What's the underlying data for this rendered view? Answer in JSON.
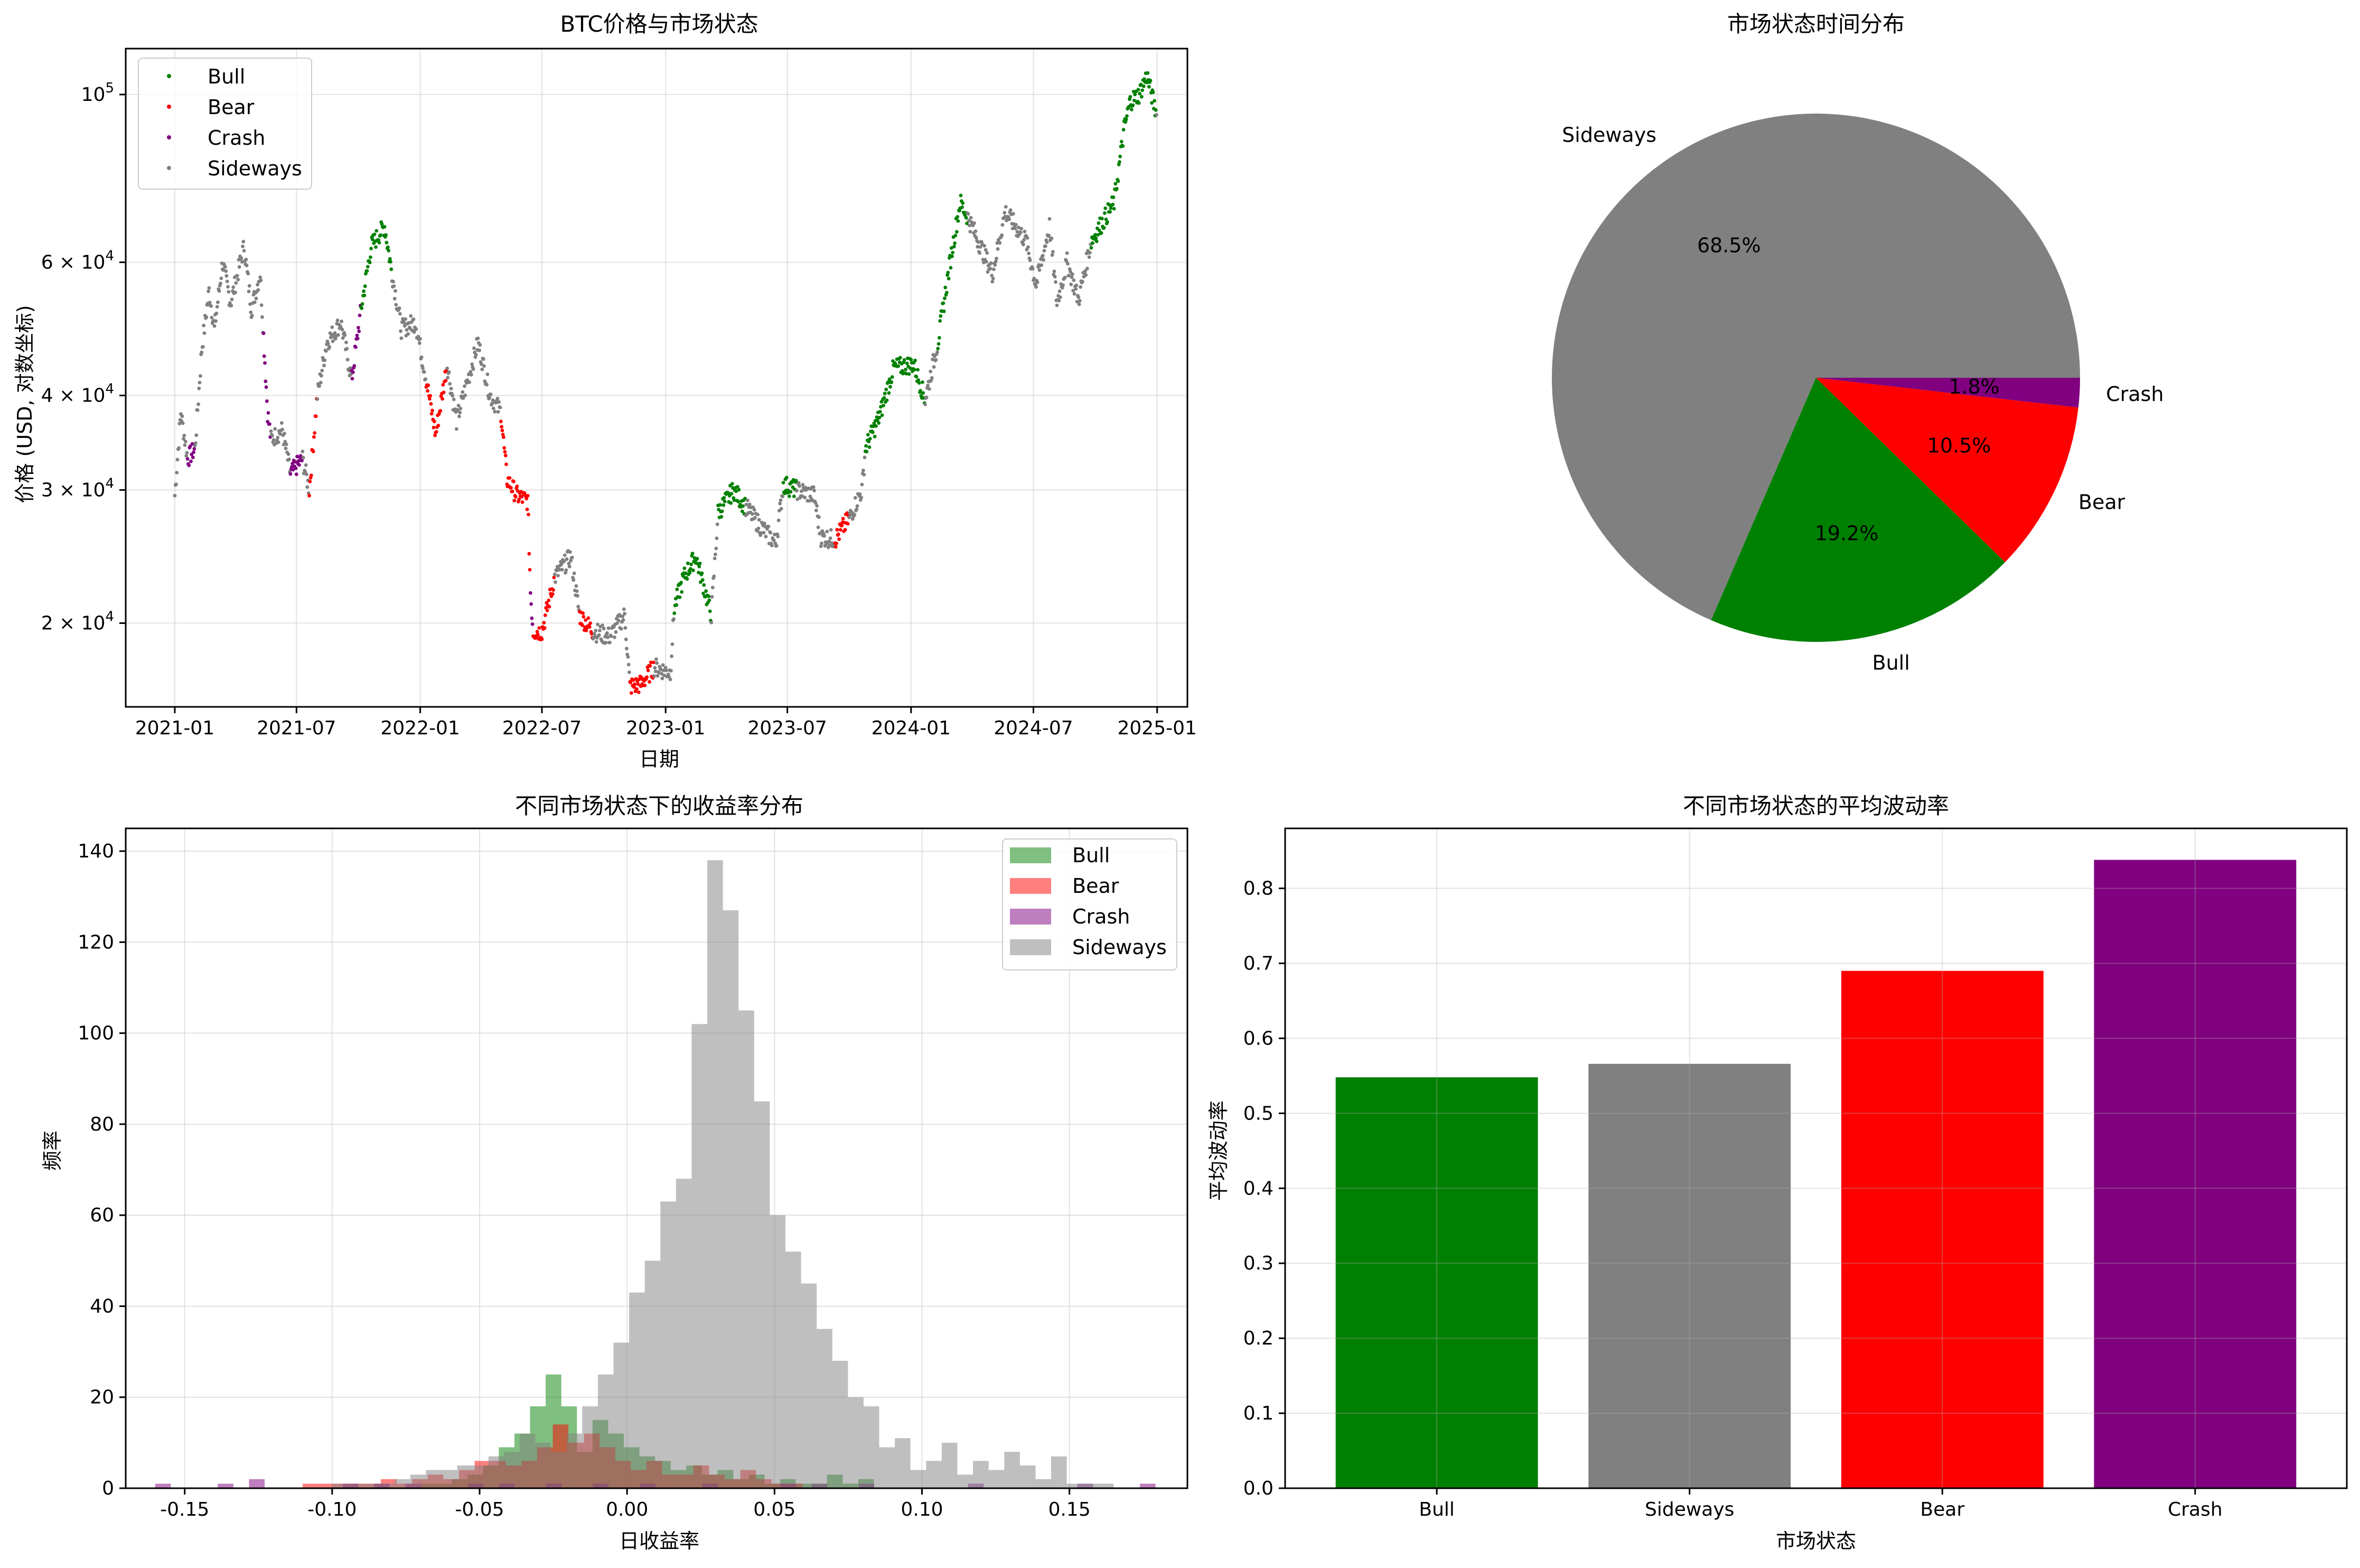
{
  "colors": {
    "Bull": "#008000",
    "Bear": "#ff0000",
    "Crash": "#800080",
    "Sideways": "#808080"
  },
  "chart_data": [
    {
      "type": "scatter",
      "title": "BTC价格与市场状态",
      "xlabel": "日期",
      "ylabel": "价格 (USD, 对数坐标)",
      "yscale": "log",
      "ylim": [
        15500,
        115000
      ],
      "xlim": [
        "2020-10-20",
        "2025-02-15"
      ],
      "x_ticks": [
        "2021-01",
        "2021-07",
        "2022-01",
        "2022-07",
        "2023-01",
        "2023-07",
        "2024-01",
        "2024-07",
        "2025-01"
      ],
      "x_tick_dates": [
        "2021-01-01",
        "2021-07-01",
        "2022-01-01",
        "2022-07-01",
        "2023-01-01",
        "2023-07-01",
        "2024-01-01",
        "2024-07-01",
        "2025-01-01"
      ],
      "y_ticks": [
        {
          "value": 20000,
          "mant": "2 × 10",
          "exp": "4"
        },
        {
          "value": 30000,
          "mant": "3 × 10",
          "exp": "4"
        },
        {
          "value": 40000,
          "mant": "4 × 10",
          "exp": "4"
        },
        {
          "value": 60000,
          "mant": "6 × 10",
          "exp": "4"
        },
        {
          "value": 100000,
          "mant": "10",
          "exp": "5"
        }
      ],
      "legend": {
        "position": "top-left",
        "entries": [
          "Bull",
          "Bear",
          "Crash",
          "Sideways"
        ]
      },
      "grid": true,
      "price_path": [
        [
          "2021-01-01",
          29500,
          "Sideways"
        ],
        [
          "2021-01-10",
          38000,
          "Sideways"
        ],
        [
          "2021-01-20",
          33000,
          "Crash"
        ],
        [
          "2021-01-31",
          34000,
          "Sideways"
        ],
        [
          "2021-02-10",
          46000,
          "Sideways"
        ],
        [
          "2021-02-21",
          55000,
          "Sideways"
        ],
        [
          "2021-03-01",
          49000,
          "Sideways"
        ],
        [
          "2021-03-13",
          60000,
          "Sideways"
        ],
        [
          "2021-03-25",
          53000,
          "Sideways"
        ],
        [
          "2021-04-14",
          63000,
          "Sideways"
        ],
        [
          "2021-04-25",
          52000,
          "Sideways"
        ],
        [
          "2021-05-08",
          58000,
          "Sideways"
        ],
        [
          "2021-05-13",
          48000,
          "Crash"
        ],
        [
          "2021-05-19",
          38000,
          "Crash"
        ],
        [
          "2021-05-24",
          35000,
          "Sideways"
        ],
        [
          "2021-06-10",
          36000,
          "Sideways"
        ],
        [
          "2021-06-22",
          31500,
          "Crash"
        ],
        [
          "2021-07-10",
          33000,
          "Sideways"
        ],
        [
          "2021-07-20",
          30000,
          "Bear"
        ],
        [
          "2021-08-01",
          40000,
          "Sideways"
        ],
        [
          "2021-08-15",
          47000,
          "Sideways"
        ],
        [
          "2021-09-05",
          50000,
          "Sideways"
        ],
        [
          "2021-09-21",
          42000,
          "Crash"
        ],
        [
          "2021-10-05",
          52000,
          "Bull"
        ],
        [
          "2021-10-20",
          63000,
          "Bull"
        ],
        [
          "2021-11-09",
          67000,
          "Bull"
        ],
        [
          "2021-11-20",
          58000,
          "Sideways"
        ],
        [
          "2021-12-04",
          49000,
          "Sideways"
        ],
        [
          "2021-12-25",
          50000,
          "Sideways"
        ],
        [
          "2022-01-10",
          42000,
          "Bear"
        ],
        [
          "2022-01-24",
          35500,
          "Bear"
        ],
        [
          "2022-02-10",
          44000,
          "Sideways"
        ],
        [
          "2022-02-24",
          37000,
          "Sideways"
        ],
        [
          "2022-03-28",
          47000,
          "Sideways"
        ],
        [
          "2022-04-15",
          40000,
          "Sideways"
        ],
        [
          "2022-05-01",
          38000,
          "Bear"
        ],
        [
          "2022-05-10",
          31000,
          "Bear"
        ],
        [
          "2022-05-25",
          29500,
          "Bear"
        ],
        [
          "2022-06-10",
          29000,
          "Bear"
        ],
        [
          "2022-06-14",
          22000,
          "Crash"
        ],
        [
          "2022-06-18",
          19500,
          "Bear"
        ],
        [
          "2022-07-01",
          19500,
          "Bear"
        ],
        [
          "2022-07-20",
          23000,
          "Sideways"
        ],
        [
          "2022-08-13",
          24500,
          "Sideways"
        ],
        [
          "2022-08-26",
          20500,
          "Bear"
        ],
        [
          "2022-09-15",
          19500,
          "Sideways"
        ],
        [
          "2022-10-10",
          19200,
          "Sideways"
        ],
        [
          "2022-11-01",
          20500,
          "Sideways"
        ],
        [
          "2022-11-09",
          16500,
          "Bear"
        ],
        [
          "2022-11-25",
          16600,
          "Bear"
        ],
        [
          "2022-12-15",
          17500,
          "Sideways"
        ],
        [
          "2023-01-08",
          17200,
          "Sideways"
        ],
        [
          "2023-01-14",
          21000,
          "Bull"
        ],
        [
          "2023-01-28",
          23000,
          "Bull"
        ],
        [
          "2023-02-15",
          24500,
          "Bull"
        ],
        [
          "2023-03-10",
          20500,
          "Sideways"
        ],
        [
          "2023-03-20",
          28000,
          "Bull"
        ],
        [
          "2023-04-12",
          30000,
          "Bull"
        ],
        [
          "2023-04-30",
          28500,
          "Sideways"
        ],
        [
          "2023-05-20",
          27000,
          "Sideways"
        ],
        [
          "2023-06-14",
          25500,
          "Sideways"
        ],
        [
          "2023-06-25",
          30500,
          "Bull"
        ],
        [
          "2023-07-15",
          30000,
          "Sideways"
        ],
        [
          "2023-08-10",
          29500,
          "Sideways"
        ],
        [
          "2023-08-20",
          26000,
          "Sideways"
        ],
        [
          "2023-09-10",
          25800,
          "Bear"
        ],
        [
          "2023-10-01",
          27500,
          "Sideways"
        ],
        [
          "2023-10-20",
          30000,
          "Sideways"
        ],
        [
          "2023-10-25",
          34000,
          "Bull"
        ],
        [
          "2023-11-15",
          37500,
          "Bull"
        ],
        [
          "2023-12-06",
          43500,
          "Bull"
        ],
        [
          "2024-01-05",
          44000,
          "Bull"
        ],
        [
          "2024-01-22",
          39500,
          "Sideways"
        ],
        [
          "2024-02-10",
          47000,
          "Bull"
        ],
        [
          "2024-02-28",
          60000,
          "Bull"
        ],
        [
          "2024-03-14",
          72000,
          "Bull"
        ],
        [
          "2024-03-25",
          69000,
          "Sideways"
        ],
        [
          "2024-05-01",
          58000,
          "Sideways"
        ],
        [
          "2024-05-20",
          70000,
          "Sideways"
        ],
        [
          "2024-06-20",
          64000,
          "Sideways"
        ],
        [
          "2024-07-05",
          56000,
          "Sideways"
        ],
        [
          "2024-07-25",
          67000,
          "Sideways"
        ],
        [
          "2024-08-05",
          53000,
          "Sideways"
        ],
        [
          "2024-08-20",
          60000,
          "Sideways"
        ],
        [
          "2024-09-06",
          53500,
          "Sideways"
        ],
        [
          "2024-09-25",
          64000,
          "Bull"
        ],
        [
          "2024-10-29",
          72000,
          "Bull"
        ],
        [
          "2024-11-13",
          90000,
          "Bull"
        ],
        [
          "2024-11-22",
          98000,
          "Bull"
        ],
        [
          "2024-12-05",
          100000,
          "Bull"
        ],
        [
          "2024-12-17",
          106000,
          "Bull"
        ],
        [
          "2024-12-31",
          94000,
          "Sideways"
        ]
      ]
    },
    {
      "type": "pie",
      "title": "市场状态时间分布",
      "slices": [
        {
          "label": "Sideways",
          "percent": 68.5,
          "pct_text": "68.5%"
        },
        {
          "label": "Bull",
          "percent": 19.2,
          "pct_text": "19.2%"
        },
        {
          "label": "Bear",
          "percent": 10.5,
          "pct_text": "10.5%"
        },
        {
          "label": "Crash",
          "percent": 1.8,
          "pct_text": "1.8%"
        }
      ]
    },
    {
      "type": "histogram",
      "title": "不同市场状态下的收益率分布",
      "xlabel": "日收益率",
      "ylabel": "频率",
      "xlim": [
        -0.17,
        0.19
      ],
      "ylim": [
        0,
        145
      ],
      "x_ticks": [
        "-0.15",
        "-0.10",
        "-0.05",
        "0.00",
        "0.05",
        "0.10",
        "0.15"
      ],
      "y_ticks": [
        "0",
        "20",
        "40",
        "60",
        "80",
        "100",
        "120",
        "140"
      ],
      "legend": {
        "position": "top-right",
        "entries": [
          "Bull",
          "Bear",
          "Crash",
          "Sideways"
        ]
      },
      "grid": true,
      "series": [
        {
          "name": "Sideways",
          "alpha": 0.5,
          "bin_width": 0.0053,
          "bins_start": -0.1,
          "counts": [
            1,
            1,
            1,
            1,
            2,
            3,
            4,
            4,
            5,
            5,
            7,
            8,
            12,
            10,
            8,
            12,
            18,
            25,
            32,
            43,
            50,
            63,
            68,
            102,
            138,
            127,
            105,
            85,
            60,
            52,
            45,
            35,
            28,
            20,
            18,
            9,
            11,
            4,
            6,
            10,
            3,
            6,
            4,
            8,
            5,
            2,
            7,
            1,
            1,
            1
          ]
        },
        {
          "name": "Bull",
          "alpha": 0.5,
          "bin_width": 0.0053,
          "bins_start": -0.07,
          "counts": [
            1,
            1,
            2,
            3,
            5,
            9,
            12,
            18,
            25,
            18,
            8,
            15,
            12,
            9,
            7,
            6,
            4,
            5,
            3,
            4,
            2,
            3,
            1,
            2,
            1,
            1,
            3,
            1,
            2
          ]
        },
        {
          "name": "Bear",
          "alpha": 0.5,
          "bin_width": 0.0053,
          "bins_start": -0.11,
          "counts": [
            1,
            1,
            1,
            1,
            1,
            2,
            1,
            2,
            3,
            2,
            4,
            6,
            6,
            5,
            6,
            9,
            14,
            10,
            12,
            9,
            6,
            4,
            6,
            3,
            3,
            5,
            3,
            2,
            4,
            2,
            1,
            1
          ]
        },
        {
          "name": "Crash",
          "alpha": 0.5,
          "bin_width": 0.0053,
          "bins_start": -0.16,
          "counts": [
            1,
            0,
            0,
            0,
            1,
            0,
            2,
            0,
            0,
            0,
            0,
            0,
            1,
            0,
            1,
            0,
            1,
            0,
            0,
            0,
            1,
            0,
            1,
            0,
            0,
            1,
            0,
            0,
            1,
            0,
            0,
            1,
            0,
            0,
            0,
            1,
            0,
            0,
            0,
            0,
            1,
            0,
            1,
            0,
            0,
            1,
            0,
            0,
            0,
            0,
            0,
            0,
            1,
            0,
            0,
            0,
            0,
            0,
            0,
            1,
            0,
            0,
            0,
            1
          ]
        }
      ]
    },
    {
      "type": "bar",
      "title": "不同市场状态的平均波动率",
      "xlabel": "市场状态",
      "ylabel": "平均波动率",
      "categories": [
        "Bull",
        "Sideways",
        "Bear",
        "Crash"
      ],
      "values": [
        0.548,
        0.566,
        0.69,
        0.838
      ],
      "ylim": [
        0,
        0.88
      ],
      "y_ticks": [
        "0.0",
        "0.1",
        "0.2",
        "0.3",
        "0.4",
        "0.5",
        "0.6",
        "0.7",
        "0.8"
      ],
      "grid": true
    }
  ]
}
